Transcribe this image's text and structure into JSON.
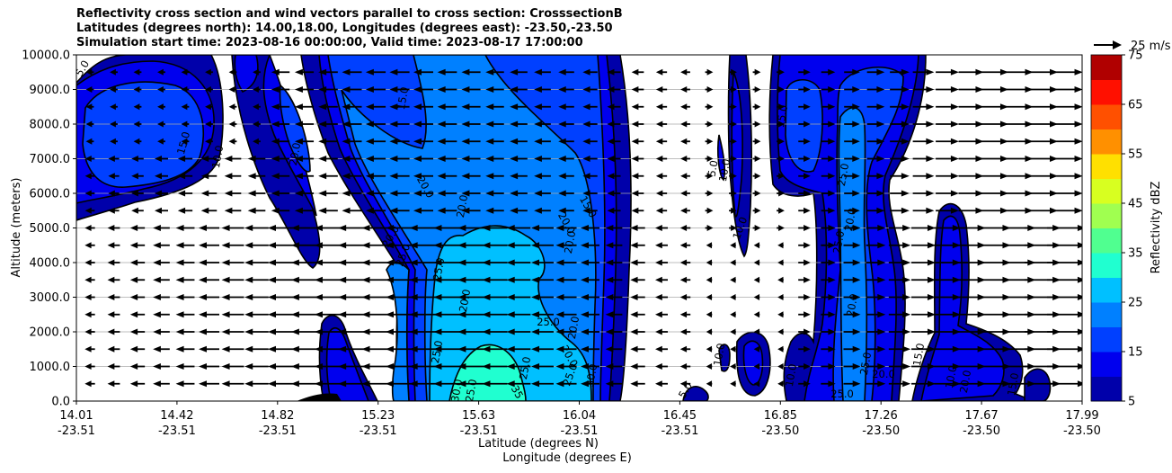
{
  "title_lines": [
    "Reflectivity cross section and wind vectors parallel to cross section: CrosssectionB",
    "Latitudes (degrees north): 14.00,18.00, Longitudes (degrees east): -23.50,-23.50",
    "Simulation start time: 2023-08-16 00:00:00, Valid time: 2023-08-17 17:00:00"
  ],
  "chart_data": {
    "type": "contourf",
    "ylabel": "Altitude (meters)",
    "xlabel_lat": "Latitude (degrees N)",
    "xlabel_lon": "Longitude (degrees E)",
    "ylim": [
      0,
      10000
    ],
    "y_ticks": [
      "0.0",
      "1000.0",
      "2000.0",
      "3000.0",
      "4000.0",
      "5000.0",
      "6000.0",
      "7000.0",
      "8000.0",
      "9000.0",
      "10000.0"
    ],
    "x_ticks": [
      {
        "lat": "14.01",
        "lon": "-23.51"
      },
      {
        "lat": "14.42",
        "lon": "-23.51"
      },
      {
        "lat": "14.82",
        "lon": "-23.51"
      },
      {
        "lat": "15.23",
        "lon": "-23.51"
      },
      {
        "lat": "15.63",
        "lon": "-23.51"
      },
      {
        "lat": "16.04",
        "lon": "-23.51"
      },
      {
        "lat": "16.45",
        "lon": "-23.51"
      },
      {
        "lat": "16.85",
        "lon": "-23.50"
      },
      {
        "lat": "17.26",
        "lon": "-23.50"
      },
      {
        "lat": "17.67",
        "lon": "-23.50"
      },
      {
        "lat": "17.99",
        "lon": "-23.50"
      }
    ],
    "grid": "horizontal",
    "colorbar": {
      "label": "Reflectivity dBZ",
      "levels": [
        5,
        10,
        15,
        20,
        25,
        30,
        35,
        40,
        45,
        50,
        55,
        60,
        65,
        70,
        75
      ],
      "tick_labels": [
        "5",
        "15",
        "25",
        "35",
        "45",
        "55",
        "65",
        "75"
      ],
      "colors": [
        "#0000aa",
        "#0000ee",
        "#0040ff",
        "#0080ff",
        "#00c0ff",
        "#20ffd0",
        "#50ff90",
        "#a0ff50",
        "#d8ff20",
        "#ffe000",
        "#ff9000",
        "#ff5000",
        "#ff1000",
        "#b00000"
      ]
    },
    "quiver_key": "25 m/s",
    "contour_labels": [
      "5.0",
      "10.0",
      "15.0",
      "20.0",
      "25.0",
      "30.0",
      "35"
    ],
    "vector_rows_m": [
      500,
      1000,
      1500,
      2000,
      2500,
      3000,
      3500,
      4000,
      4500,
      5000,
      5500,
      6000,
      6500,
      7000,
      7500,
      8000,
      8500,
      9000,
      9500
    ]
  }
}
